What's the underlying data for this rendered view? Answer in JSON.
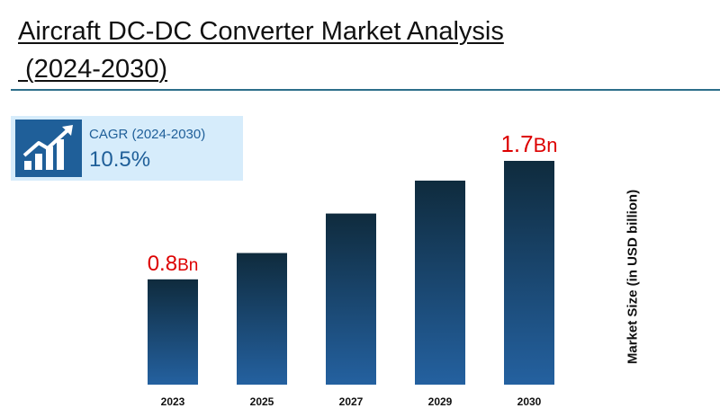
{
  "title": {
    "line1": "Aircraft DC-DC Converter Market Analysis",
    "line2": " (2024-2030)"
  },
  "cagr": {
    "label": "CAGR (2024-2030)",
    "value": "10.5%",
    "icon": "growth-chart-arrow-icon"
  },
  "colors": {
    "bar_top": "#0f2b3d",
    "bar_bottom": "#2461a0",
    "highlight_label": "#dd0000",
    "accent": "#1f5f99"
  },
  "chart_data": {
    "type": "bar",
    "categories": [
      "2023",
      "2025",
      "2027",
      "2029",
      "2030"
    ],
    "values": [
      0.8,
      1.0,
      1.3,
      1.55,
      1.7
    ],
    "data_labels": [
      {
        "index": 0,
        "number": "0.8",
        "unit": "Bn"
      },
      {
        "index": 4,
        "number": "1.7",
        "unit": "Bn"
      }
    ],
    "ylabel": "Market Size (in USD billion)",
    "ylim": [
      0,
      1.7
    ],
    "grid": false,
    "legend": "none"
  }
}
